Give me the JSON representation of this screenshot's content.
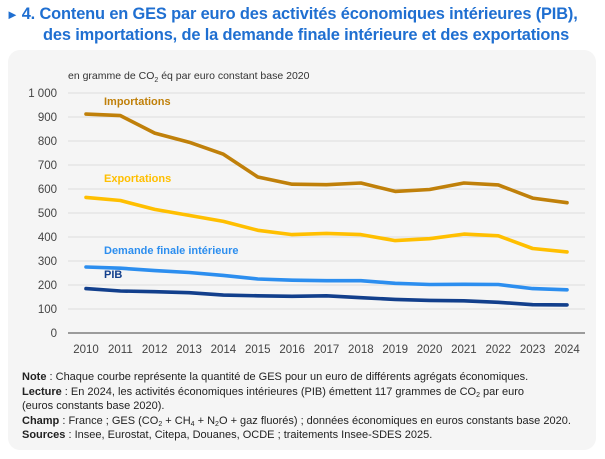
{
  "title": {
    "arrow_icon": "►",
    "number": "4.",
    "line1": "Contenu en GES par euro des activités économiques intérieures (PIB),",
    "line2": "des importations, de la demande finale intérieure et des exportations"
  },
  "colors": {
    "title": "#1f6fd1",
    "importations": "#c0800a",
    "exportations": "#ffbf00",
    "demande_finale": "#2c8eef",
    "pib": "#123f8c",
    "grid": "#dddddd",
    "axis": "#666666"
  },
  "chart_data": {
    "type": "line",
    "title": "Contenu en GES par euro des activités économiques intérieures (PIB), des importations, de la demande finale intérieure et des exportations",
    "ylabel_prefix": "en gramme de CO",
    "ylabel_sub": "2",
    "ylabel_suffix": " éq par euro constant base 2020",
    "xlabel": "",
    "x": [
      2010,
      2011,
      2012,
      2013,
      2014,
      2015,
      2016,
      2017,
      2018,
      2019,
      2020,
      2021,
      2022,
      2023,
      2024
    ],
    "ylim": [
      0,
      1000
    ],
    "yticks": [
      0,
      100,
      200,
      300,
      400,
      500,
      600,
      700,
      800,
      900,
      1000
    ],
    "ytick_labels": [
      "0",
      "100",
      "200",
      "300",
      "400",
      "500",
      "600",
      "700",
      "800",
      "900",
      "1 000"
    ],
    "grid": true,
    "legend": "inline-labels",
    "series": [
      {
        "key": "importations",
        "name": "Importations",
        "values": [
          912,
          906,
          833,
          795,
          745,
          650,
          620,
          618,
          625,
          590,
          598,
          625,
          617,
          562,
          543
        ]
      },
      {
        "key": "exportations",
        "name": "Exportations",
        "values": [
          565,
          552,
          515,
          490,
          465,
          428,
          410,
          415,
          410,
          385,
          393,
          412,
          405,
          352,
          338
        ]
      },
      {
        "key": "demande_finale",
        "name": "Demande finale intérieure",
        "values": [
          275,
          270,
          260,
          252,
          240,
          225,
          220,
          218,
          218,
          207,
          202,
          203,
          202,
          185,
          180
        ]
      },
      {
        "key": "pib",
        "name": "PIB",
        "values": [
          185,
          175,
          172,
          168,
          158,
          155,
          153,
          155,
          147,
          140,
          136,
          134,
          128,
          118,
          117
        ]
      }
    ]
  },
  "notes": {
    "note_label": "Note",
    "note_text": " : Chaque courbe représente la quantité de GES pour un euro de différents agrégats économiques.",
    "lecture_label": "Lecture",
    "lecture_text_a": " : En 2024, les activités économiques intérieures (PIB) émettent 117 grammes de CO",
    "lecture_sub": "2",
    "lecture_text_b": " par euro",
    "lecture_text_c": "(euros constants base 2020).",
    "champ_label": "Champ",
    "champ_text_a": " : France ; GES (CO",
    "champ_sub1": "2",
    "champ_text_b": " + CH",
    "champ_sub2": "4",
    "champ_text_c": " + N",
    "champ_sub3": "2",
    "champ_text_d": "O + gaz fluorés) ; données économiques en euros constants base 2020.",
    "sources_label": "Sources",
    "sources_text": " : Insee, Eurostat, Citepa, Douanes, OCDE ; traitements Insee-SDES 2025."
  }
}
